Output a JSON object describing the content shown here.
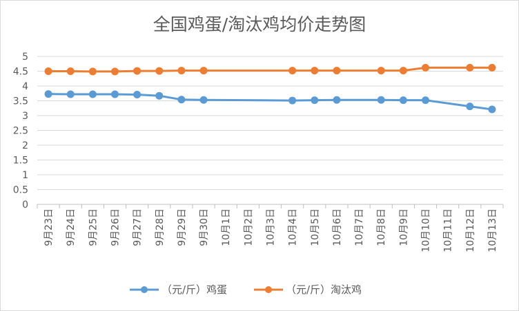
{
  "chart_data": {
    "type": "line",
    "title": "全国鸡蛋/淘汰鸡均价走势图",
    "xlabel": "",
    "ylabel": "",
    "categories": [
      "9月23日",
      "9月24日",
      "9月25日",
      "9月26日",
      "9月27日",
      "9月28日",
      "9月29日",
      "9月30日",
      "10月1日",
      "10月2日",
      "10月3日",
      "10月4日",
      "10月5日",
      "10月6日",
      "10月7日",
      "10月8日",
      "10月9日",
      "10月10日",
      "10月11日",
      "10月12日",
      "10月13日"
    ],
    "ylim": [
      0,
      5
    ],
    "yticks": [
      "0",
      "0.5",
      "1",
      "1.5",
      "2",
      "2.5",
      "3",
      "3.5",
      "4",
      "4.5",
      "5"
    ],
    "grid": true,
    "legend_position": "bottom",
    "series": [
      {
        "name": "（元/斤）鸡蛋",
        "color": "#5B9BD5",
        "values": [
          3.73,
          3.72,
          3.72,
          3.72,
          3.71,
          3.67,
          3.54,
          3.53,
          null,
          null,
          null,
          3.51,
          3.52,
          3.53,
          null,
          3.53,
          3.52,
          3.52,
          null,
          3.31,
          3.21
        ]
      },
      {
        "name": "（元/斤）淘汰鸡",
        "color": "#ED7D31",
        "values": [
          4.5,
          4.5,
          4.49,
          4.49,
          4.51,
          4.51,
          4.52,
          4.52,
          null,
          null,
          null,
          4.52,
          4.52,
          4.52,
          null,
          4.52,
          4.52,
          4.62,
          null,
          4.62,
          4.62
        ]
      }
    ]
  }
}
